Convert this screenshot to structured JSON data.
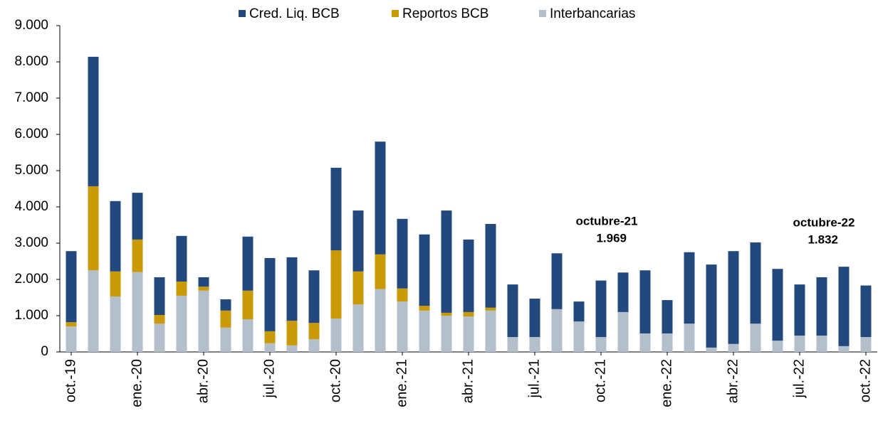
{
  "chart_data": {
    "type": "stacked_bar",
    "categories": [
      "oct.-19",
      null,
      null,
      "ene.-20",
      null,
      null,
      "abr.-20",
      null,
      null,
      "jul.-20",
      null,
      null,
      "oct.-20",
      null,
      null,
      "ene.-21",
      null,
      null,
      "abr.-21",
      null,
      null,
      "jul.-21",
      null,
      null,
      "oct.-21",
      null,
      null,
      "ene.-22",
      null,
      null,
      "abr.-22",
      null,
      null,
      "jul.-22",
      null,
      null,
      "oct.-22"
    ],
    "series": [
      {
        "name": "Cred. Liq. BCB",
        "color": "#22487e",
        "values": [
          1960,
          3570,
          1940,
          1290,
          1040,
          1260,
          260,
          310,
          1490,
          2020,
          1750,
          1450,
          2280,
          1680,
          3110,
          1920,
          1970,
          2820,
          2000,
          2310,
          1450,
          1060,
          1540,
          550,
          1559,
          1090,
          1740,
          920,
          1970,
          2290,
          2560,
          2240,
          1980,
          1410,
          1610,
          2190,
          1422
        ]
      },
      {
        "name": "Reportos BCB",
        "color": "#c99a06",
        "values": [
          120,
          2320,
          690,
          900,
          240,
          390,
          110,
          470,
          790,
          330,
          680,
          450,
          1880,
          910,
          960,
          360,
          130,
          80,
          120,
          80,
          0,
          0,
          0,
          0,
          0,
          0,
          0,
          0,
          0,
          0,
          0,
          0,
          0,
          0,
          0,
          0,
          0
        ]
      },
      {
        "name": "Interbancarias",
        "color": "#b4bfcc",
        "values": [
          700,
          2250,
          1530,
          2200,
          780,
          1550,
          1690,
          670,
          900,
          240,
          180,
          350,
          920,
          1310,
          1730,
          1390,
          1140,
          1000,
          980,
          1140,
          410,
          410,
          1180,
          840,
          410,
          1100,
          510,
          510,
          780,
          120,
          220,
          780,
          310,
          450,
          450,
          160,
          410
        ]
      }
    ],
    "ylim": [
      0,
      9000
    ],
    "yticks": [
      0,
      {
        "value": 1000,
        "label": "1.000"
      },
      {
        "value": 2000,
        "label": "2.000"
      },
      {
        "value": 3000,
        "label": "3.000"
      },
      {
        "value": 4000,
        "label": "4.000"
      },
      {
        "value": 5000,
        "label": "5.000"
      },
      {
        "value": 6000,
        "label": "6.000"
      },
      {
        "value": 7000,
        "label": "7.000"
      },
      {
        "value": 8000,
        "label": "8.000"
      },
      {
        "value": 9000,
        "label": "9.000"
      }
    ],
    "legend": "top",
    "annotations": [
      {
        "title": "octubre-21",
        "value": "1.969"
      },
      {
        "title": "octubre-22",
        "value": "1.832"
      }
    ]
  }
}
